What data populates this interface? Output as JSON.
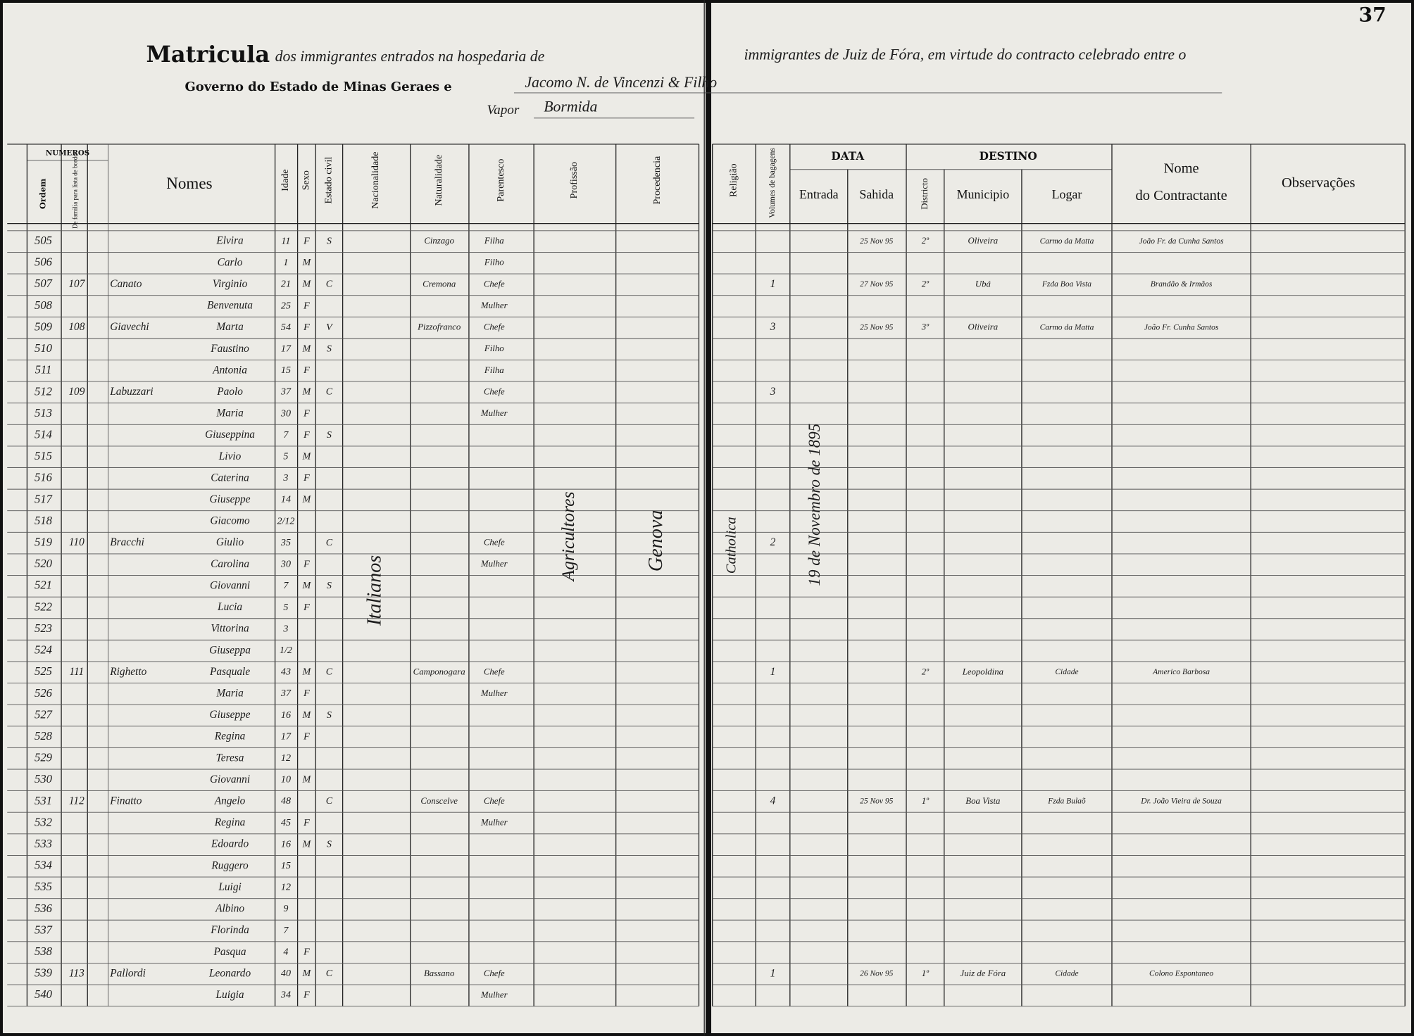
{
  "header": {
    "page_number": "37",
    "title_word": "Matricula",
    "title_left": "dos immigrantes entrados na hospedaria de",
    "title_right": "immigrantes de Juiz de Fóra, em virtude do contracto celebrado entre o",
    "line2": "Governo do Estado de Minas Geraes e",
    "contractor": "Jacomo N. de Vincenzi & Filho",
    "vapor_label": "Vapor",
    "vapor_name": "Bormida"
  },
  "table": {
    "columns": {
      "numeros": "NUMEROS",
      "ordem": "Ordem",
      "familia": "De familia para lista de bordo",
      "nomes": "Nomes",
      "idade": "Idade",
      "sexo": "Sexo",
      "estado": "Estado civil",
      "nacionalidade": "Nacionalidade",
      "naturalidade": "Naturalidade",
      "parentesco": "Parentesco",
      "profissao": "Profissão",
      "procedencia": "Procedencia",
      "religiao": "Religião",
      "volumes": "Volumes de bagagens",
      "data": "DATA",
      "entrada": "Entrada",
      "sahida": "Sahida",
      "destino": "DESTINO",
      "districto": "Districto",
      "municipio": "Municipio",
      "logar": "Logar",
      "contractante_1": "Nome",
      "contractante_2": "do Contractante",
      "observacoes": "Observações"
    },
    "rows": [
      {
        "ordem": "505",
        "nome": "Elvira",
        "idade": "11",
        "sexo": "F",
        "estado": "S",
        "naturalidade": "Cinzago",
        "parentesco": "Filha",
        "sahida": "25 Nov 95",
        "districto": "2º",
        "municipio": "Oliveira",
        "logar": "Carmo da Matta",
        "contractante": "João Fr. da Cunha Santos"
      },
      {
        "ordem": "506",
        "nome": "Carlo",
        "idade": "1",
        "sexo": "M",
        "parentesco": "Filho"
      },
      {
        "ordem": "507",
        "familia": "107",
        "sobrenome": "Canato",
        "nome": "Virginio",
        "idade": "21",
        "sexo": "M",
        "estado": "C",
        "naturalidade": "Cremona",
        "parentesco": "Chefe",
        "volumes": "1",
        "sahida": "27 Nov 95",
        "districto": "2º",
        "municipio": "Ubá",
        "logar": "Fzda Boa Vista",
        "contractante": "Brandão & Irmãos"
      },
      {
        "ordem": "508",
        "nome": "Benvenuta",
        "idade": "25",
        "sexo": "F",
        "parentesco": "Mulher"
      },
      {
        "ordem": "509",
        "familia": "108",
        "sobrenome": "Giavechi",
        "nome": "Marta",
        "idade": "54",
        "sexo": "F",
        "estado": "V",
        "naturalidade": "Pizzofranco",
        "parentesco": "Chefe",
        "volumes": "3",
        "sahida": "25 Nov 95",
        "districto": "3º",
        "municipio": "Oliveira",
        "logar": "Carmo da Matta",
        "contractante": "João Fr. Cunha Santos"
      },
      {
        "ordem": "510",
        "nome": "Faustino",
        "idade": "17",
        "sexo": "M",
        "estado": "S",
        "parentesco": "Filho"
      },
      {
        "ordem": "511",
        "nome": "Antonia",
        "idade": "15",
        "sexo": "F",
        "parentesco": "Filha"
      },
      {
        "ordem": "512",
        "familia": "109",
        "sobrenome": "Labuzzari",
        "nome": "Paolo",
        "idade": "37",
        "sexo": "M",
        "estado": "C",
        "parentesco": "Chefe",
        "volumes": "3"
      },
      {
        "ordem": "513",
        "nome": "Maria",
        "idade": "30",
        "sexo": "F",
        "parentesco": "Mulher"
      },
      {
        "ordem": "514",
        "nome": "Giuseppina",
        "idade": "7",
        "sexo": "F",
        "estado": "S"
      },
      {
        "ordem": "515",
        "nome": "Livio",
        "idade": "5",
        "sexo": "M"
      },
      {
        "ordem": "516",
        "nome": "Caterina",
        "idade": "3",
        "sexo": "F"
      },
      {
        "ordem": "517",
        "nome": "Giuseppe",
        "idade": "14",
        "sexo": "M"
      },
      {
        "ordem": "518",
        "nome": "Giacomo",
        "idade": "2/12"
      },
      {
        "ordem": "519",
        "familia": "110",
        "sobrenome": "Bracchi",
        "nome": "Giulio",
        "idade": "35",
        "estado": "C",
        "parentesco": "Chefe",
        "volumes": "2"
      },
      {
        "ordem": "520",
        "nome": "Carolina",
        "idade": "30",
        "sexo": "F",
        "parentesco": "Mulher"
      },
      {
        "ordem": "521",
        "nome": "Giovanni",
        "idade": "7",
        "sexo": "M",
        "estado": "S"
      },
      {
        "ordem": "522",
        "nome": "Lucia",
        "idade": "5",
        "sexo": "F"
      },
      {
        "ordem": "523",
        "nome": "Vittorina",
        "idade": "3"
      },
      {
        "ordem": "524",
        "nome": "Giuseppa",
        "idade": "1/2"
      },
      {
        "ordem": "525",
        "familia": "111",
        "sobrenome": "Righetto",
        "nome": "Pasquale",
        "idade": "43",
        "sexo": "M",
        "estado": "C",
        "naturalidade": "Camponogara",
        "parentesco": "Chefe",
        "volumes": "1",
        "districto": "2º",
        "municipio": "Leopoldina",
        "logar": "Cidade",
        "contractante": "Americo Barbosa"
      },
      {
        "ordem": "526",
        "nome": "Maria",
        "idade": "37",
        "sexo": "F",
        "parentesco": "Mulher"
      },
      {
        "ordem": "527",
        "nome": "Giuseppe",
        "idade": "16",
        "sexo": "M",
        "estado": "S"
      },
      {
        "ordem": "528",
        "nome": "Regina",
        "idade": "17",
        "sexo": "F"
      },
      {
        "ordem": "529",
        "nome": "Teresa",
        "idade": "12"
      },
      {
        "ordem": "530",
        "nome": "Giovanni",
        "idade": "10",
        "sexo": "M"
      },
      {
        "ordem": "531",
        "familia": "112",
        "sobrenome": "Finatto",
        "nome": "Angelo",
        "idade": "48",
        "estado": "C",
        "naturalidade": "Conscelve",
        "parentesco": "Chefe",
        "volumes": "4",
        "sahida": "25 Nov 95",
        "districto": "1º",
        "municipio": "Boa Vista",
        "logar": "Fzda Bulaõ",
        "contractante": "Dr. João Vieira de Souza"
      },
      {
        "ordem": "532",
        "nome": "Regina",
        "idade": "45",
        "sexo": "F",
        "parentesco": "Mulher"
      },
      {
        "ordem": "533",
        "nome": "Edoardo",
        "idade": "16",
        "sexo": "M",
        "estado": "S"
      },
      {
        "ordem": "534",
        "nome": "Ruggero",
        "idade": "15"
      },
      {
        "ordem": "535",
        "nome": "Luigi",
        "idade": "12"
      },
      {
        "ordem": "536",
        "nome": "Albino",
        "idade": "9"
      },
      {
        "ordem": "537",
        "nome": "Florinda",
        "idade": "7"
      },
      {
        "ordem": "538",
        "nome": "Pasqua",
        "idade": "4",
        "sexo": "F"
      },
      {
        "ordem": "539",
        "familia": "113",
        "sobrenome": "Pallordi",
        "nome": "Leonardo",
        "idade": "40",
        "sexo": "M",
        "estado": "C",
        "naturalidade": "Bassano",
        "parentesco": "Chefe",
        "volumes": "1",
        "sahida": "26 Nov 95",
        "districto": "1º",
        "municipio": "Juiz de Fóra",
        "logar": "Cidade",
        "contractante": "Colono Espontaneo"
      },
      {
        "ordem": "540",
        "nome": "Luigia",
        "idade": "34",
        "sexo": "F",
        "parentesco": "Mulher"
      }
    ]
  },
  "annotations": {
    "nacionalidade": "Italianos",
    "profissao": "Agricultores",
    "procedencia": "Genova",
    "religiao": "Catholica",
    "entrada": "19 de Novembro de 1895"
  }
}
